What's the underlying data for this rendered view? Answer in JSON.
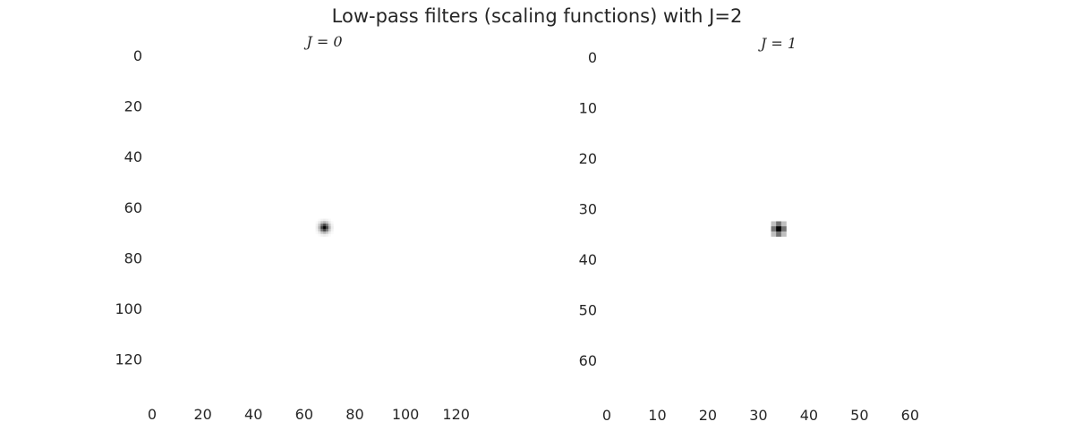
{
  "figure": {
    "suptitle": "Low-pass filters (scaling functions) with J=2"
  },
  "chart_data": [
    {
      "type": "heatmap",
      "title": "J = 0",
      "colormap": "greys",
      "grid": false,
      "image_size": [
        136,
        136
      ],
      "peak": {
        "x": 68,
        "y": 68
      },
      "blob_sigma": 1.3,
      "xlim": [
        0,
        136
      ],
      "ylim": [
        136,
        0
      ],
      "x_ticks": [
        0,
        20,
        40,
        60,
        80,
        100,
        120
      ],
      "y_ticks": [
        0,
        20,
        40,
        60,
        80,
        100,
        120
      ],
      "xlabel": "",
      "ylabel": ""
    },
    {
      "type": "heatmap",
      "title": "J = 1",
      "colormap": "greys",
      "grid": false,
      "image_size": [
        68,
        68
      ],
      "peak": {
        "x": 34,
        "y": 34
      },
      "kernel": [
        [
          0.25,
          0.55,
          0.25
        ],
        [
          0.55,
          1.0,
          0.55
        ],
        [
          0.25,
          0.55,
          0.25
        ]
      ],
      "xlim": [
        0,
        68
      ],
      "ylim": [
        68,
        0
      ],
      "x_ticks": [
        0,
        10,
        20,
        30,
        40,
        50,
        60
      ],
      "y_ticks": [
        0,
        10,
        20,
        30,
        40,
        50,
        60
      ],
      "xlabel": "",
      "ylabel": ""
    }
  ]
}
